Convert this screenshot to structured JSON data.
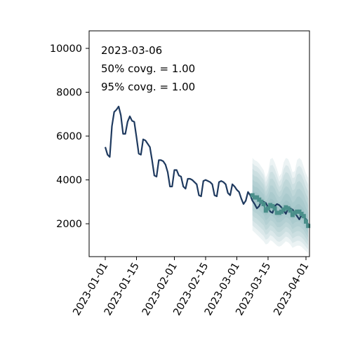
{
  "chart_data": {
    "type": "line",
    "xaxis": {
      "type": "date",
      "range": [
        "2023-01-01",
        "2023-04-01"
      ],
      "ticks": [
        "2023-01-01",
        "2023-01-15",
        "2023-02-01",
        "2023-02-15",
        "2023-03-01",
        "2023-03-15",
        "2023-04-01"
      ]
    },
    "yaxis": {
      "range": [
        500,
        10800
      ],
      "ticks": [
        2000,
        4000,
        6000,
        8000,
        10000
      ]
    },
    "grid": false,
    "legend": null,
    "annotations": [
      "2023-03-06",
      "50% covg. = 1.00",
      "95% covg. = 1.00"
    ],
    "colors": {
      "observed": "#1f3a5f",
      "forecast": "#4a8f8a",
      "band": "#6aa6aa"
    },
    "observed": {
      "x": [
        "2023-01-01",
        "2023-01-02",
        "2023-01-03",
        "2023-01-04",
        "2023-01-05",
        "2023-01-06",
        "2023-01-07",
        "2023-01-08",
        "2023-01-09",
        "2023-01-10",
        "2023-01-11",
        "2023-01-12",
        "2023-01-13",
        "2023-01-14",
        "2023-01-15",
        "2023-01-16",
        "2023-01-17",
        "2023-01-18",
        "2023-01-19",
        "2023-01-20",
        "2023-01-21",
        "2023-01-22",
        "2023-01-23",
        "2023-01-24",
        "2023-01-25",
        "2023-01-26",
        "2023-01-27",
        "2023-01-28",
        "2023-01-29",
        "2023-01-30",
        "2023-01-31",
        "2023-02-01",
        "2023-02-02",
        "2023-02-03",
        "2023-02-04",
        "2023-02-05",
        "2023-02-06",
        "2023-02-07",
        "2023-02-08",
        "2023-02-09",
        "2023-02-10",
        "2023-02-11",
        "2023-02-12",
        "2023-02-13",
        "2023-02-14",
        "2023-02-15",
        "2023-02-16",
        "2023-02-17",
        "2023-02-18",
        "2023-02-19",
        "2023-02-20",
        "2023-02-21",
        "2023-02-22",
        "2023-02-23",
        "2023-02-24",
        "2023-02-25",
        "2023-02-26",
        "2023-02-27",
        "2023-02-28",
        "2023-03-01",
        "2023-03-02",
        "2023-03-03",
        "2023-03-04",
        "2023-03-05",
        "2023-03-06",
        "2023-03-07",
        "2023-03-08",
        "2023-03-09",
        "2023-03-10",
        "2023-03-11",
        "2023-03-12",
        "2023-03-13",
        "2023-03-14",
        "2023-03-15",
        "2023-03-16",
        "2023-03-17",
        "2023-03-18",
        "2023-03-19",
        "2023-03-20",
        "2023-03-21",
        "2023-03-22",
        "2023-03-23",
        "2023-03-24",
        "2023-03-25",
        "2023-03-26",
        "2023-03-27",
        "2023-03-28",
        "2023-03-29",
        "2023-03-30",
        "2023-03-31",
        "2023-04-01",
        "2023-04-02"
      ],
      "y": [
        5500,
        5150,
        5050,
        6450,
        7100,
        7200,
        7350,
        6950,
        6100,
        6100,
        6650,
        6900,
        6700,
        6650,
        5950,
        5200,
        5150,
        5850,
        5800,
        5650,
        5500,
        4900,
        4200,
        4150,
        4900,
        4900,
        4850,
        4700,
        4350,
        3700,
        3700,
        4450,
        4450,
        4200,
        4150,
        3700,
        3600,
        4050,
        4050,
        4000,
        3900,
        3800,
        3300,
        3250,
        3950,
        4000,
        3950,
        3900,
        3800,
        3300,
        3250,
        3900,
        3950,
        3900,
        3800,
        3400,
        3300,
        3800,
        3700,
        3550,
        3450,
        3150,
        2900,
        3050,
        3450,
        3300,
        3050,
        2900,
        2700,
        2800,
        3050,
        3000,
        2950,
        2750,
        2550,
        2500,
        2800,
        2900,
        2850,
        2750,
        2600,
        2450,
        2700,
        2700,
        2650,
        2500,
        2350,
        2200,
        2400,
        2350,
        2200,
        1950
      ]
    },
    "forecast": {
      "x": [
        "2023-03-08",
        "2023-03-09",
        "2023-03-10",
        "2023-03-11",
        "2023-03-12",
        "2023-03-13",
        "2023-03-14",
        "2023-03-15",
        "2023-03-16",
        "2023-03-17",
        "2023-03-18",
        "2023-03-19",
        "2023-03-20",
        "2023-03-21",
        "2023-03-22",
        "2023-03-23",
        "2023-03-24",
        "2023-03-25",
        "2023-03-26",
        "2023-03-27",
        "2023-03-28",
        "2023-03-29",
        "2023-03-30",
        "2023-03-31",
        "2023-04-01",
        "2023-04-02"
      ],
      "median": [
        3300,
        3200,
        3200,
        3100,
        3000,
        2900,
        2600,
        2700,
        2850,
        2800,
        2700,
        2500,
        2500,
        2550,
        2650,
        2750,
        2700,
        2600,
        2400,
        2500,
        2550,
        2550,
        2450,
        2350,
        2100,
        1900
      ],
      "lower95": [
        1700,
        1600,
        1500,
        1400,
        1300,
        1200,
        1050,
        1100,
        1250,
        1200,
        1100,
        1000,
        950,
        1000,
        1100,
        1200,
        1150,
        1050,
        900,
        950,
        1000,
        1000,
        950,
        850,
        750,
        650
      ],
      "upper95": [
        5000,
        4900,
        4850,
        4750,
        4600,
        4450,
        4100,
        4350,
        4950,
        5000,
        4800,
        4500,
        4150,
        4300,
        4800,
        5000,
        4950,
        4700,
        4350,
        4400,
        4900,
        5000,
        4900,
        4600,
        4300,
        4100
      ]
    }
  }
}
